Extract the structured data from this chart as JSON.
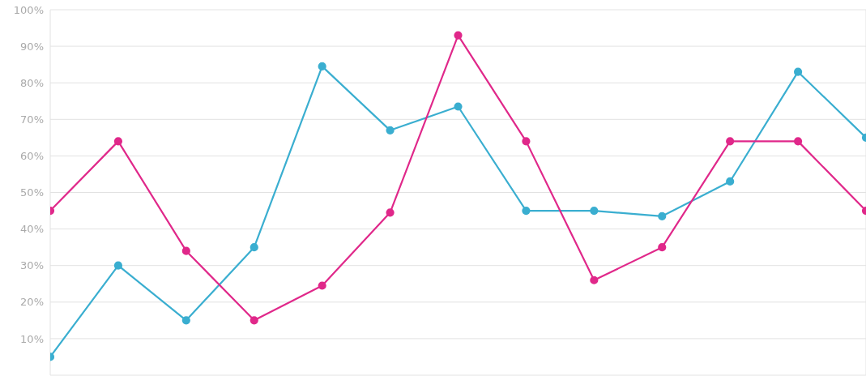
{
  "chart_data": {
    "type": "line",
    "categories": [
      null,
      null,
      null,
      null,
      null,
      null,
      null,
      null,
      null,
      null,
      null,
      null,
      null
    ],
    "series": [
      {
        "color": "#3aaed0",
        "values": [
          5,
          30,
          15,
          35,
          84.5,
          67,
          73.5,
          45,
          45,
          43.5,
          53,
          83,
          65
        ]
      },
      {
        "color": "#e0288a",
        "values": [
          45,
          64,
          34,
          15,
          24.5,
          44.5,
          93,
          64,
          26,
          35,
          64,
          64,
          45
        ]
      }
    ],
    "ylim": [
      0,
      100
    ],
    "yticks": [
      {
        "value": 10,
        "label": "10%"
      },
      {
        "value": 20,
        "label": "20%"
      },
      {
        "value": 30,
        "label": "30%"
      },
      {
        "value": 40,
        "label": "40%"
      },
      {
        "value": 50,
        "label": "50%"
      },
      {
        "value": 60,
        "label": "60%"
      },
      {
        "value": 70,
        "label": "70%"
      },
      {
        "value": 80,
        "label": "80%"
      },
      {
        "value": 90,
        "label": "90%"
      },
      {
        "value": 100,
        "label": "100%"
      }
    ],
    "grid": true,
    "marker": "circle",
    "tick_labels": "y"
  }
}
